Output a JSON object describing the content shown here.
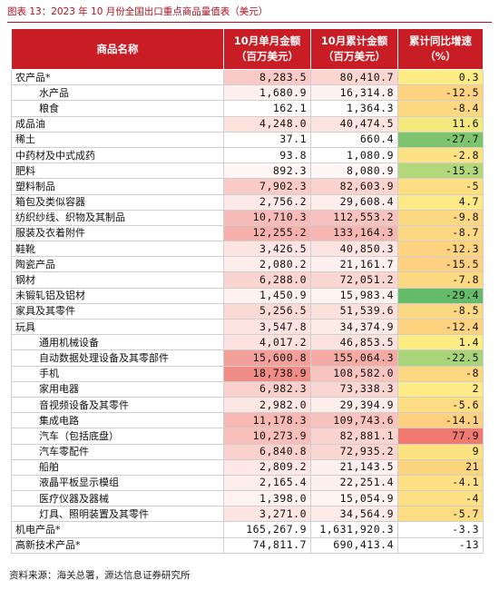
{
  "title": "图表 13：2023 年 10 月份全国出口重点商品量值表（美元）",
  "headers": [
    "商品名称",
    "10月单月金额（百万美元）",
    "10月累计金额（百万美元）",
    "累计同比增速（%）"
  ],
  "rows": [
    {
      "name": "农产品*",
      "indent": false,
      "month": "8,283.5",
      "cum": "80,410.7",
      "yoy": "0.3",
      "c1": "#f9c9c5",
      "c2": "#fbd5d0",
      "c3": "#fdeb84"
    },
    {
      "name": "水产品",
      "indent": true,
      "month": "1,680.9",
      "cum": "16,314.8",
      "yoy": "-12.5",
      "c1": "#fdf0ee",
      "c2": "#fdf2f0",
      "c3": "#fdd280"
    },
    {
      "name": "粮食",
      "indent": true,
      "month": "162.1",
      "cum": "1,364.3",
      "yoy": "-8.4",
      "c1": "#ffffff",
      "c2": "#ffffff",
      "c3": "#fdd882"
    },
    {
      "name": "成品油",
      "indent": false,
      "month": "4,248.0",
      "cum": "40,474.5",
      "yoy": "11.6",
      "c1": "#fce1dd",
      "c2": "#fce4e0",
      "c3": "#f4e97f"
    },
    {
      "name": "稀土",
      "indent": false,
      "month": "37.1",
      "cum": "660.4",
      "yoy": "-27.7",
      "c1": "#ffffff",
      "c2": "#ffffff",
      "c3": "#7ec46e"
    },
    {
      "name": "中药材及中式成药",
      "indent": false,
      "month": "93.8",
      "cum": "1,080.9",
      "yoy": "-2.8",
      "c1": "#ffffff",
      "c2": "#ffffff",
      "c3": "#fde283"
    },
    {
      "name": "肥料",
      "indent": false,
      "month": "892.3",
      "cum": "8,080.9",
      "yoy": "-15.3",
      "c1": "#fef7f6",
      "c2": "#fef7f6",
      "c3": "#b3d77b"
    },
    {
      "name": "塑料制品",
      "indent": false,
      "month": "7,902.3",
      "cum": "82,603.9",
      "yoy": "-5",
      "c1": "#f9cbc7",
      "c2": "#fad3cf",
      "c3": "#fddf83"
    },
    {
      "name": "箱包及类似容器",
      "indent": false,
      "month": "2,756.2",
      "cum": "29,608.4",
      "yoy": "4.7",
      "c1": "#fde9e7",
      "c2": "#fdeeec",
      "c3": "#fde985"
    },
    {
      "name": "纺织纱线、织物及其制品",
      "indent": false,
      "month": "10,710.3",
      "cum": "112,553.2",
      "yoy": "-9.8",
      "c1": "#f7bcb7",
      "c2": "#f8c3be",
      "c3": "#fdd882"
    },
    {
      "name": "服装及衣着附件",
      "indent": false,
      "month": "12,255.2",
      "cum": "133,164.3",
      "yoy": "-8.7",
      "c1": "#f6b1ac",
      "c2": "#f6b7b2",
      "c3": "#fdd882"
    },
    {
      "name": "鞋靴",
      "indent": false,
      "month": "3,426.5",
      "cum": "40,850.3",
      "yoy": "-12.3",
      "c1": "#fde5e2",
      "c2": "#fce4e0",
      "c3": "#fdd380"
    },
    {
      "name": "陶瓷产品",
      "indent": false,
      "month": "2,080.2",
      "cum": "21,161.7",
      "yoy": "-15.5",
      "c1": "#fdeeec",
      "c2": "#fdf0ee",
      "c3": "#fdcf80"
    },
    {
      "name": "钢材",
      "indent": false,
      "month": "6,288.0",
      "cum": "72,051.2",
      "yoy": "-7.8",
      "c1": "#fad4d0",
      "c2": "#fad6d2",
      "c3": "#fdd982"
    },
    {
      "name": "未锻轧铝及铝材",
      "indent": false,
      "month": "1,450.9",
      "cum": "15,983.4",
      "yoy": "-29.4",
      "c1": "#fef2f0",
      "c2": "#fef3f1",
      "c3": "#66bb6a"
    },
    {
      "name": "家具及其零件",
      "indent": false,
      "month": "5,256.5",
      "cum": "51,539.6",
      "yoy": "-8.5",
      "c1": "#fbdad6",
      "c2": "#fbe0dc",
      "c3": "#fdd882"
    },
    {
      "name": "玩具",
      "indent": false,
      "month": "3,547.8",
      "cum": "34,374.9",
      "yoy": "-12.4",
      "c1": "#fde4e1",
      "c2": "#fdebe8",
      "c3": "#fdd380"
    },
    {
      "name": "通用机械设备",
      "indent": true,
      "month": "4,017.2",
      "cum": "46,853.5",
      "yoy": "1.4",
      "c1": "#fce2df",
      "c2": "#fce2de",
      "c3": "#fdeb84"
    },
    {
      "name": "自动数据处理设备及其零部件",
      "indent": true,
      "month": "15,600.8",
      "cum": "155,064.3",
      "yoy": "-22.5",
      "c1": "#f3a09a",
      "c2": "#f5aaa4",
      "c3": "#a9d47a"
    },
    {
      "name": "手机",
      "indent": true,
      "month": "18,738.9",
      "cum": "108,582.0",
      "yoy": "-8",
      "c1": "#f08c86",
      "c2": "#f8c4bf",
      "c3": "#fdd882"
    },
    {
      "name": "家用电器",
      "indent": true,
      "month": "6,982.3",
      "cum": "73,338.3",
      "yoy": "2",
      "c1": "#fad0cc",
      "c2": "#fad6d2",
      "c3": "#fde985"
    },
    {
      "name": "音视频设备及其零件",
      "indent": true,
      "month": "2,982.0",
      "cum": "29,394.9",
      "yoy": "-5.6",
      "c1": "#fde7e4",
      "c2": "#fdeeec",
      "c3": "#fddd83"
    },
    {
      "name": "集成电路",
      "indent": true,
      "month": "11,178.3",
      "cum": "109,743.6",
      "yoy": "-14.1",
      "c1": "#f7b8b3",
      "c2": "#f8c3be",
      "c3": "#fdd080"
    },
    {
      "name": "汽车（包括底盘）",
      "indent": true,
      "month": "10,273.9",
      "cum": "82,881.1",
      "yoy": "77.9",
      "c1": "#f8beb9",
      "c2": "#fad2ce",
      "c3": "#f07a72"
    },
    {
      "name": "汽车零配件",
      "indent": true,
      "month": "6,840.8",
      "cum": "72,935.2",
      "yoy": "9",
      "c1": "#fad1cd",
      "c2": "#fad6d2",
      "c3": "#fde280"
    },
    {
      "name": "船舶",
      "indent": true,
      "month": "2,809.2",
      "cum": "21,143.5",
      "yoy": "21",
      "c1": "#fde8e6",
      "c2": "#fdf0ee",
      "c3": "#fbd47e"
    },
    {
      "name": "液晶平板显示模组",
      "indent": true,
      "month": "2,165.4",
      "cum": "22,251.4",
      "yoy": "-4.1",
      "c1": "#fdeeec",
      "c2": "#fdefed",
      "c3": "#fde083"
    },
    {
      "name": "医疗仪器及器械",
      "indent": true,
      "month": "1,398.0",
      "cum": "15,054.9",
      "yoy": "-4",
      "c1": "#fef3f1",
      "c2": "#fef4f2",
      "c3": "#fde083"
    },
    {
      "name": "灯具、照明装置及其零件",
      "indent": true,
      "month": "3,271.0",
      "cum": "34,564.9",
      "yoy": "-5.7",
      "c1": "#fde5e2",
      "c2": "#fdebe8",
      "c3": "#fddd83"
    },
    {
      "name": "机电产品*",
      "indent": false,
      "month": "165,267.9",
      "cum": "1,631,920.3",
      "yoy": "-3.3",
      "c1": "#ffffff",
      "c2": "#ffffff",
      "c3": "#ffffff"
    },
    {
      "name": "高新技术产品*",
      "indent": false,
      "month": "74,811.7",
      "cum": "690,413.4",
      "yoy": "-13",
      "c1": "#ffffff",
      "c2": "#ffffff",
      "c3": "#ffffff"
    }
  ],
  "source": "资料来源：海关总署，源达信息证券研究所"
}
